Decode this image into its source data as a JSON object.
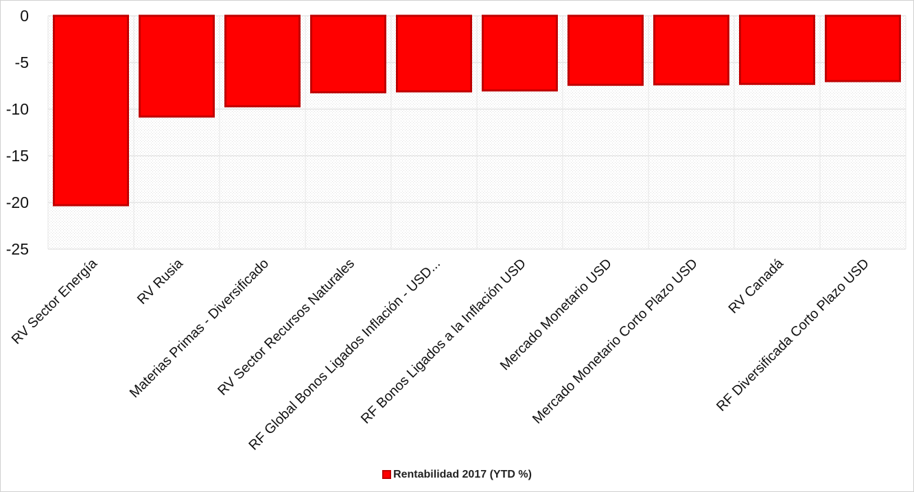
{
  "chart_data": {
    "type": "bar",
    "categories": [
      "RV Sector Energía",
      "RV Rusia",
      "Materias Primas - Diversificado",
      "RV Sector Recursos Naturales",
      "RF Global Bonos Ligados Inflación - USD...",
      "RF Bonos Ligados a la Inflación USD",
      "Mercado Monetario USD",
      "Mercado Monetario Corto Plazo USD",
      "RV Canadá",
      "RF Diversificada Corto Plazo USD"
    ],
    "series": [
      {
        "name": "Rentabilidad 2017 (YTD %)",
        "values": [
          -20.3,
          -10.8,
          -9.7,
          -8.2,
          -8.1,
          -8.0,
          -7.4,
          -7.35,
          -7.3,
          -7.0
        ],
        "color": "#ff0000",
        "border_color": "#c00000"
      }
    ],
    "ylim": [
      -25,
      0
    ],
    "yticks": [
      0,
      -5,
      -10,
      -15,
      -20,
      -25
    ],
    "grid": true,
    "legend_position": "bottom"
  }
}
